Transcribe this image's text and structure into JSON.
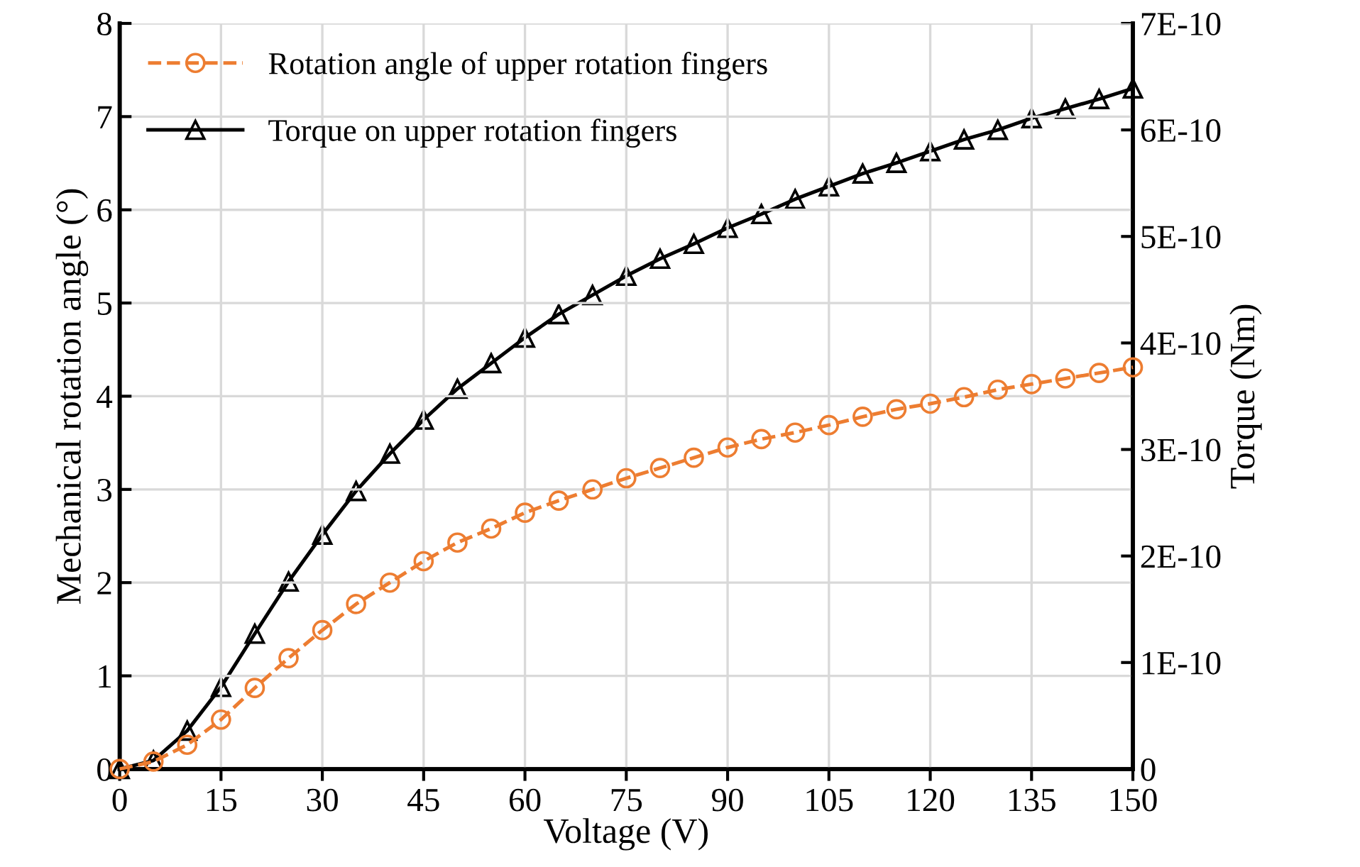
{
  "chart_data": {
    "type": "line",
    "xlabel": "Voltage (V)",
    "ylabel": "Mechanical rotation angle (°)",
    "y2label": "Torque (Nm)",
    "x": [
      0,
      5,
      10,
      15,
      20,
      25,
      30,
      35,
      40,
      45,
      50,
      55,
      60,
      65,
      70,
      75,
      80,
      85,
      90,
      95,
      100,
      105,
      110,
      115,
      120,
      125,
      130,
      135,
      140,
      145,
      150
    ],
    "series": [
      {
        "name": "Rotation angle of upper rotation fingers",
        "color": "#ed7d31",
        "marker": "circle",
        "line_style": "dashed",
        "values": [
          0,
          0.08,
          0.26,
          0.53,
          0.87,
          1.19,
          1.49,
          1.77,
          2.0,
          2.23,
          2.43,
          2.58,
          2.75,
          2.88,
          3.0,
          3.12,
          3.23,
          3.34,
          3.45,
          3.54,
          3.61,
          3.69,
          3.78,
          3.86,
          3.92,
          3.99,
          4.07,
          4.13,
          4.19,
          4.25,
          4.31
        ]
      },
      {
        "name": "Torque on upper rotation fingers",
        "color": "#000000",
        "marker": "triangle",
        "line_style": "solid",
        "axis": "y2",
        "values": [
          0,
          8e-12,
          3.6e-11,
          7.7e-11,
          1.27e-10,
          1.76e-10,
          2.2e-10,
          2.61e-10,
          2.96e-10,
          3.28e-10,
          3.57e-10,
          3.81e-10,
          4.05e-10,
          4.27e-10,
          4.45e-10,
          4.63e-10,
          4.79e-10,
          4.93e-10,
          5.08e-10,
          5.21e-10,
          5.35e-10,
          5.47e-10,
          5.59e-10,
          5.69e-10,
          5.8e-10,
          5.91e-10,
          6e-10,
          6.11e-10,
          6.2e-10,
          6.29e-10,
          6.39e-10
        ]
      }
    ],
    "xlim": [
      0,
      150
    ],
    "xticks": [
      0,
      15,
      30,
      45,
      60,
      75,
      90,
      105,
      120,
      135,
      150
    ],
    "ylim": [
      0,
      8
    ],
    "yticks": [
      0,
      1,
      2,
      3,
      4,
      5,
      6,
      7,
      8
    ],
    "y2lim": [
      0,
      7e-10
    ],
    "y2ticks": [
      0,
      {
        "value": 1e-10,
        "label": "1E-10"
      },
      {
        "value": 2e-10,
        "label": "2E-10"
      },
      {
        "value": 3e-10,
        "label": "3E-10"
      },
      {
        "value": 4e-10,
        "label": "4E-10"
      },
      {
        "value": 5e-10,
        "label": "5E-10"
      },
      {
        "value": 6e-10,
        "label": "6E-10"
      },
      {
        "value": 7e-10,
        "label": "7E-10"
      }
    ],
    "grid": true,
    "legend": "top left"
  }
}
